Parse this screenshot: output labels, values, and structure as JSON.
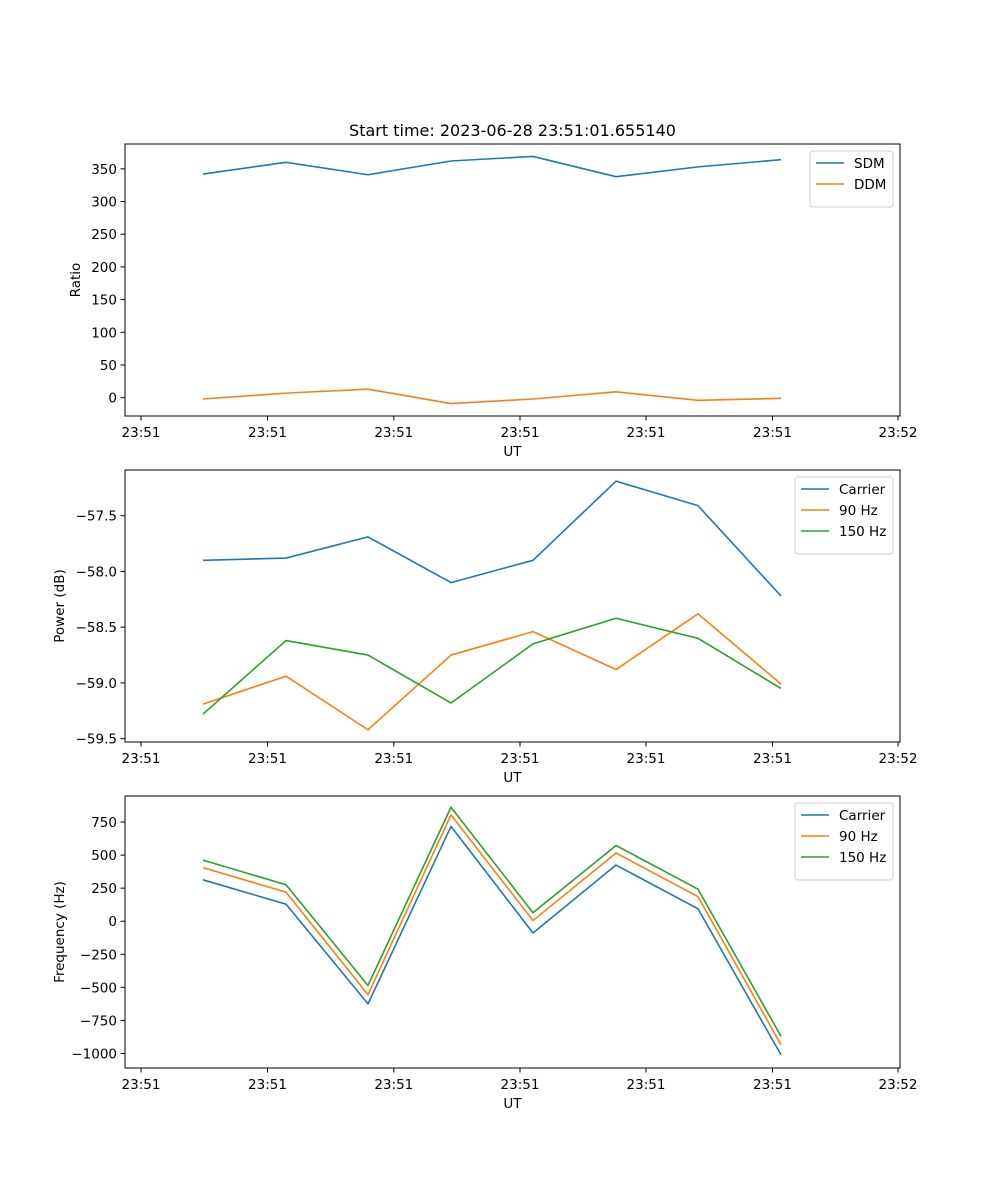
{
  "figure_title": "Start time: 2023-06-28 23:51:01.655140",
  "chart_data": [
    {
      "type": "line",
      "title": "Start time: 2023-06-28 23:51:01.655140",
      "xlabel": "UT",
      "ylabel": "Ratio",
      "x_tick_labels": [
        "23:51",
        "23:51",
        "23:51",
        "23:51",
        "23:51",
        "23:51",
        "23:52"
      ],
      "y_ticks": [
        0,
        50,
        100,
        150,
        200,
        250,
        300,
        350
      ],
      "ylim": [
        -28,
        388
      ],
      "grid": false,
      "legend_position": "top-right",
      "series": [
        {
          "name": "SDM",
          "color": "#1f77b4",
          "values": [
            342,
            360,
            341,
            362,
            369,
            338,
            353,
            364
          ]
        },
        {
          "name": "DDM",
          "color": "#ff7f0e",
          "values": [
            -2,
            7,
            13,
            -9,
            -2,
            9,
            -4,
            -1
          ]
        }
      ]
    },
    {
      "type": "line",
      "title": "",
      "xlabel": "UT",
      "ylabel": "Power (dB)",
      "x_tick_labels": [
        "23:51",
        "23:51",
        "23:51",
        "23:51",
        "23:51",
        "23:51",
        "23:52"
      ],
      "y_ticks": [
        -59.5,
        -59.0,
        -58.5,
        -58.0,
        -57.5
      ],
      "y_tick_labels": [
        "−59.5",
        "−59.0",
        "−58.5",
        "−58.0",
        "−57.5"
      ],
      "ylim": [
        -59.53,
        -57.09
      ],
      "grid": false,
      "legend_position": "top-right",
      "series": [
        {
          "name": "Carrier",
          "color": "#1f77b4",
          "values": [
            -57.9,
            -57.88,
            -57.69,
            -58.1,
            -57.9,
            -57.19,
            -57.41,
            -58.22
          ]
        },
        {
          "name": "90 Hz",
          "color": "#ff7f0e",
          "values": [
            -59.19,
            -58.94,
            -59.42,
            -58.75,
            -58.54,
            -58.88,
            -58.38,
            -59.01
          ]
        },
        {
          "name": "150 Hz",
          "color": "#2ca02c",
          "values": [
            -59.28,
            -58.62,
            -58.75,
            -59.18,
            -58.65,
            -58.42,
            -58.6,
            -59.05
          ]
        }
      ]
    },
    {
      "type": "line",
      "title": "",
      "xlabel": "UT",
      "ylabel": "Frequency (Hz)",
      "x_tick_labels": [
        "23:51",
        "23:51",
        "23:51",
        "23:51",
        "23:51",
        "23:51",
        "23:52"
      ],
      "y_ticks": [
        -1000,
        -750,
        -500,
        -250,
        0,
        250,
        500,
        750
      ],
      "y_tick_labels": [
        "−1000",
        "−750",
        "−500",
        "−250",
        "0",
        "250",
        "500",
        "750"
      ],
      "ylim": [
        -1110,
        947
      ],
      "grid": false,
      "legend_position": "top-right",
      "series": [
        {
          "name": "Carrier",
          "color": "#1f77b4",
          "values": [
            313,
            129,
            -625,
            717,
            -89,
            425,
            94,
            -1010
          ]
        },
        {
          "name": "90 Hz",
          "color": "#ff7f0e",
          "values": [
            405,
            220,
            -555,
            804,
            5,
            516,
            186,
            -935
          ]
        },
        {
          "name": "150 Hz",
          "color": "#2ca02c",
          "values": [
            462,
            276,
            -486,
            862,
            64,
            573,
            242,
            -870
          ]
        }
      ]
    }
  ]
}
